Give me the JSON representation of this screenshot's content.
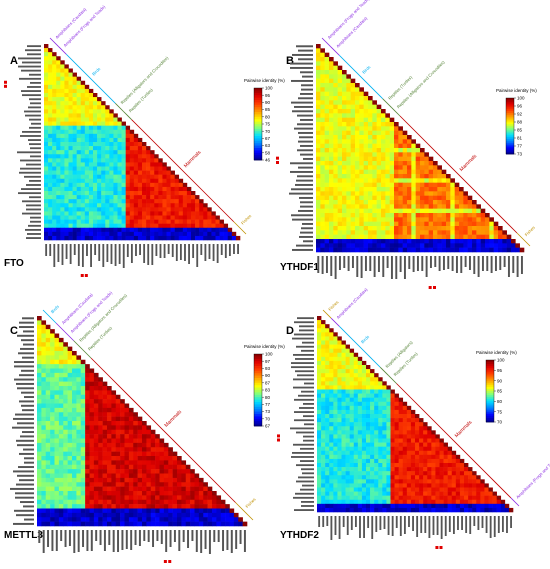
{
  "colorbar_title": "Pairwise identity (%)",
  "colormap": [
    "#00008f",
    "#0000ff",
    "#007fff",
    "#00dfff",
    "#7fff7f",
    "#ffff00",
    "#ff9f00",
    "#ff3f00",
    "#df0000",
    "#800000"
  ],
  "label_colors": {
    "amphibians": "#8b2be2",
    "birds": "#00b0f0",
    "reptiles": "#548235",
    "mammals": "#c00000",
    "fishes": "#bf9000",
    "marker": "#e00000"
  },
  "panels": [
    {
      "letter": "A",
      "gene": "FTO",
      "colorbar_ticks": [
        "100",
        "95",
        "90",
        "85",
        "80",
        "75",
        "70",
        "67",
        "63",
        "58",
        "46"
      ],
      "group_labels": {
        "amph_caud": "Amphibians (Caudata)",
        "amph_frogs": "Amphibians (Frogs and Toads)",
        "birds": "Birds",
        "rep_alli": "Reptiles (Alligators and Crocodiles)",
        "rep_turt": "Reptiles (Turtles)",
        "mammals": "Mammals",
        "fishes": "Fishes"
      }
    },
    {
      "letter": "B",
      "gene": "YTHDF1",
      "colorbar_ticks": [
        "100",
        "96",
        "92",
        "88",
        "85",
        "81",
        "77",
        "73"
      ],
      "group_labels": {
        "amph_frogs": "Amphibians (Frogs and Toads)",
        "amph_caud": "Amphibians (Caudata)",
        "birds": "Birds",
        "rep_turt": "Reptiles (Turtles)",
        "rep_alli": "Reptiles (Alligators and Crocodiles)",
        "mammals": "Mammals",
        "fishes": "Fishes"
      }
    },
    {
      "letter": "C",
      "gene": "METTL3",
      "colorbar_ticks": [
        "100",
        "97",
        "93",
        "90",
        "87",
        "83",
        "80",
        "77",
        "73",
        "70",
        "67"
      ],
      "group_labels": {
        "birds": "Birds",
        "amph_caud": "Amphibians (Caudata)",
        "amph_frogs": "Amphibians (Frogs and Toads)",
        "rep_alli": "Reptiles (Alligators and Crocodiles)",
        "rep_turt": "Reptiles (Turtles)",
        "mammals": "Mammals",
        "fishes": "Fishes"
      }
    },
    {
      "letter": "D",
      "gene": "YTHDF2",
      "colorbar_ticks": [
        "100",
        "95",
        "90",
        "85",
        "80",
        "75",
        "70"
      ],
      "group_labels": {
        "fishes": "Fishes",
        "amph_caud": "Amphibians (Caudata)",
        "birds": "Birds",
        "rep_alli": "Reptiles (Alligators)",
        "rep_turt": "Reptiles (Turtles)",
        "mammals": "Mammals",
        "amph_frogs": "Amphibians (Frogs and Toads)"
      }
    }
  ],
  "chart_data": [
    {
      "type": "heatmap",
      "panel": "A",
      "title": "FTO",
      "colorbar_label": "Pairwise identity (%)",
      "colorbar_range": [
        46,
        100
      ],
      "groups": [
        "Amphibians (Caudata)",
        "Amphibians (Frogs and Toads)",
        "Birds",
        "Reptiles (Alligators and Crocodiles)",
        "Reptiles (Turtles)",
        "Mammals",
        "Fishes"
      ],
      "approx_identity_ranges": {
        "within_mammals": [
          85,
          100
        ],
        "mammals_vs_birds_reptiles": [
          67,
          75
        ],
        "fishes_vs_others": [
          46,
          58
        ]
      }
    },
    {
      "type": "heatmap",
      "panel": "B",
      "title": "YTHDF1",
      "colorbar_label": "Pairwise identity (%)",
      "colorbar_range": [
        73,
        100
      ],
      "groups": [
        "Amphibians (Frogs and Toads)",
        "Amphibians (Caudata)",
        "Birds",
        "Reptiles (Turtles)",
        "Reptiles (Alligators and Crocodiles)",
        "Mammals",
        "Fishes"
      ],
      "approx_identity_ranges": {
        "within_mammals": [
          85,
          96
        ],
        "mammals_vs_birds_reptiles": [
          81,
          88
        ],
        "fishes_vs_others": [
          73,
          77
        ]
      }
    },
    {
      "type": "heatmap",
      "panel": "C",
      "title": "METTL3",
      "colorbar_label": "Pairwise identity (%)",
      "colorbar_range": [
        67,
        100
      ],
      "groups": [
        "Birds",
        "Amphibians (Caudata)",
        "Amphibians (Frogs and Toads)",
        "Reptiles (Alligators and Crocodiles)",
        "Reptiles (Turtles)",
        "Mammals",
        "Fishes"
      ],
      "approx_identity_ranges": {
        "within_mammals": [
          93,
          100
        ],
        "mammals_vs_birds_reptiles": [
          77,
          83
        ],
        "fishes_vs_others": [
          67,
          73
        ]
      }
    },
    {
      "type": "heatmap",
      "panel": "D",
      "title": "YTHDF2",
      "colorbar_label": "Pairwise identity (%)",
      "colorbar_range": [
        70,
        100
      ],
      "groups": [
        "Fishes",
        "Amphibians (Caudata)",
        "Birds",
        "Reptiles (Alligators)",
        "Reptiles (Turtles)",
        "Mammals",
        "Amphibians (Frogs and Toads)"
      ],
      "approx_identity_ranges": {
        "within_mammals": [
          90,
          100
        ],
        "mammals_vs_birds_reptiles": [
          80,
          85
        ],
        "fishes_vs_others": [
          70,
          75
        ]
      }
    }
  ]
}
